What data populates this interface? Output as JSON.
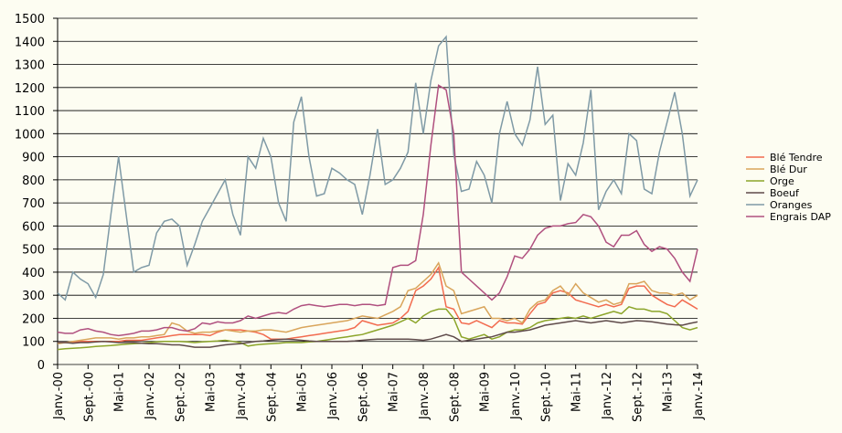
{
  "chart_data": {
    "type": "line",
    "categories": [
      "Janv.-00",
      null,
      null,
      null,
      "Sept.-00",
      null,
      null,
      null,
      "Mai-01",
      null,
      null,
      null,
      "Janv.-02",
      null,
      null,
      null,
      "Sept.-02",
      null,
      null,
      null,
      "Mai-03",
      null,
      null,
      null,
      "Janv.-04",
      null,
      null,
      null,
      "Sept.-04",
      null,
      null,
      null,
      "Mai-05",
      null,
      null,
      null,
      "Janv.-06",
      null,
      null,
      null,
      "Sept.-06",
      null,
      null,
      null,
      "Mai-07",
      null,
      null,
      null,
      "Janv.-08",
      null,
      null,
      null,
      "Sept.-08",
      null,
      null,
      null,
      "Mai-09",
      null,
      null,
      null,
      "Janv.-10",
      null,
      null,
      null,
      "Sept.-10",
      null,
      null,
      null,
      "Mai-11",
      null,
      null,
      null,
      "Janv.-12",
      null,
      null,
      null,
      "Sept.-12",
      null,
      null,
      null,
      "Mai-13",
      null,
      null,
      null,
      "Janv.-14"
    ],
    "series": [
      {
        "name": "Blé Tendre",
        "color": "#f26b4f",
        "values": [
          95,
          95,
          95,
          100,
          100,
          100,
          100,
          100,
          100,
          105,
          105,
          105,
          110,
          115,
          120,
          125,
          130,
          130,
          130,
          130,
          125,
          140,
          150,
          150,
          150,
          145,
          140,
          130,
          110,
          110,
          110,
          115,
          120,
          125,
          130,
          135,
          140,
          145,
          150,
          160,
          190,
          180,
          170,
          175,
          180,
          200,
          230,
          320,
          340,
          370,
          420,
          250,
          240,
          180,
          175,
          190,
          175,
          160,
          190,
          180,
          180,
          175,
          220,
          260,
          270,
          310,
          320,
          310,
          280,
          270,
          260,
          250,
          260,
          250,
          260,
          330,
          340,
          340,
          300,
          280,
          260,
          250,
          280,
          260,
          240
        ]
      },
      {
        "name": "Blé Dur",
        "color": "#d9a55b",
        "values": [
          90,
          95,
          100,
          105,
          110,
          115,
          115,
          115,
          110,
          115,
          115,
          120,
          120,
          125,
          130,
          180,
          170,
          145,
          135,
          140,
          140,
          145,
          150,
          145,
          140,
          145,
          145,
          150,
          150,
          145,
          140,
          150,
          160,
          165,
          170,
          175,
          180,
          185,
          190,
          200,
          210,
          205,
          200,
          215,
          230,
          250,
          320,
          330,
          360,
          390,
          440,
          340,
          320,
          220,
          230,
          240,
          250,
          200,
          200,
          190,
          200,
          180,
          240,
          270,
          280,
          320,
          340,
          300,
          350,
          310,
          290,
          270,
          280,
          260,
          270,
          350,
          350,
          360,
          320,
          310,
          310,
          300,
          310,
          280,
          300
        ]
      },
      {
        "name": "Orge",
        "color": "#8ca52a",
        "values": [
          65,
          68,
          70,
          72,
          75,
          78,
          80,
          82,
          85,
          88,
          90,
          92,
          95,
          98,
          100,
          100,
          100,
          98,
          95,
          98,
          100,
          102,
          105,
          100,
          95,
          80,
          85,
          88,
          90,
          92,
          95,
          95,
          95,
          98,
          100,
          105,
          110,
          115,
          120,
          125,
          130,
          140,
          150,
          160,
          170,
          185,
          200,
          180,
          210,
          230,
          240,
          240,
          200,
          120,
          110,
          120,
          130,
          110,
          120,
          140,
          150,
          150,
          160,
          180,
          190,
          195,
          200,
          205,
          200,
          210,
          200,
          210,
          220,
          230,
          220,
          250,
          240,
          240,
          230,
          230,
          220,
          190,
          160,
          150,
          160
        ]
      },
      {
        "name": "Boeuf",
        "color": "#5e4a4a",
        "values": [
          95,
          95,
          92,
          95,
          95,
          98,
          100,
          98,
          95,
          95,
          95,
          92,
          90,
          90,
          88,
          85,
          85,
          80,
          75,
          75,
          75,
          80,
          85,
          88,
          90,
          95,
          100,
          102,
          105,
          108,
          110,
          108,
          105,
          102,
          100,
          100,
          100,
          100,
          100,
          102,
          105,
          108,
          110,
          110,
          110,
          110,
          110,
          108,
          105,
          110,
          120,
          130,
          120,
          100,
          105,
          110,
          115,
          120,
          130,
          140,
          140,
          145,
          150,
          160,
          170,
          175,
          180,
          185,
          190,
          185,
          180,
          185,
          190,
          185,
          180,
          185,
          190,
          188,
          185,
          180,
          175,
          172,
          170,
          178,
          185
        ]
      },
      {
        "name": "Oranges",
        "color": "#7f9aa6",
        "values": [
          310,
          280,
          400,
          370,
          350,
          290,
          390,
          650,
          900,
          650,
          400,
          420,
          430,
          570,
          620,
          630,
          600,
          430,
          520,
          620,
          680,
          740,
          800,
          650,
          560,
          900,
          850,
          980,
          900,
          700,
          620,
          1050,
          1160,
          900,
          730,
          740,
          850,
          830,
          800,
          780,
          650,
          820,
          1020,
          780,
          800,
          850,
          920,
          1220,
          1000,
          1230,
          1380,
          1420,
          910,
          750,
          760,
          880,
          820,
          700,
          1000,
          1140,
          1000,
          950,
          1060,
          1290,
          1040,
          1080,
          710,
          870,
          820,
          960,
          1190,
          670,
          750,
          800,
          740,
          1000,
          970,
          760,
          740,
          920,
          1050,
          1180,
          1000,
          730,
          800
        ]
      },
      {
        "name": "Engrais DAP",
        "color": "#b0507f",
        "values": [
          140,
          135,
          135,
          150,
          155,
          145,
          140,
          130,
          125,
          130,
          135,
          145,
          145,
          150,
          160,
          160,
          150,
          145,
          155,
          180,
          175,
          185,
          180,
          180,
          190,
          210,
          200,
          210,
          220,
          225,
          220,
          240,
          255,
          260,
          255,
          250,
          255,
          260,
          260,
          255,
          260,
          260,
          255,
          260,
          420,
          430,
          430,
          450,
          650,
          950,
          1210,
          1190,
          1000,
          400,
          370,
          340,
          310,
          280,
          310,
          380,
          470,
          460,
          500,
          560,
          590,
          600,
          600,
          610,
          615,
          650,
          640,
          600,
          530,
          510,
          560,
          560,
          580,
          520,
          490,
          510,
          500,
          460,
          400,
          360,
          500
        ]
      }
    ],
    "ylim": [
      0,
      1500
    ],
    "yticks": [
      0,
      100,
      200,
      300,
      400,
      500,
      600,
      700,
      800,
      900,
      1000,
      1100,
      1200,
      1300,
      1400,
      1500
    ],
    "grid": true,
    "legend": "right"
  }
}
